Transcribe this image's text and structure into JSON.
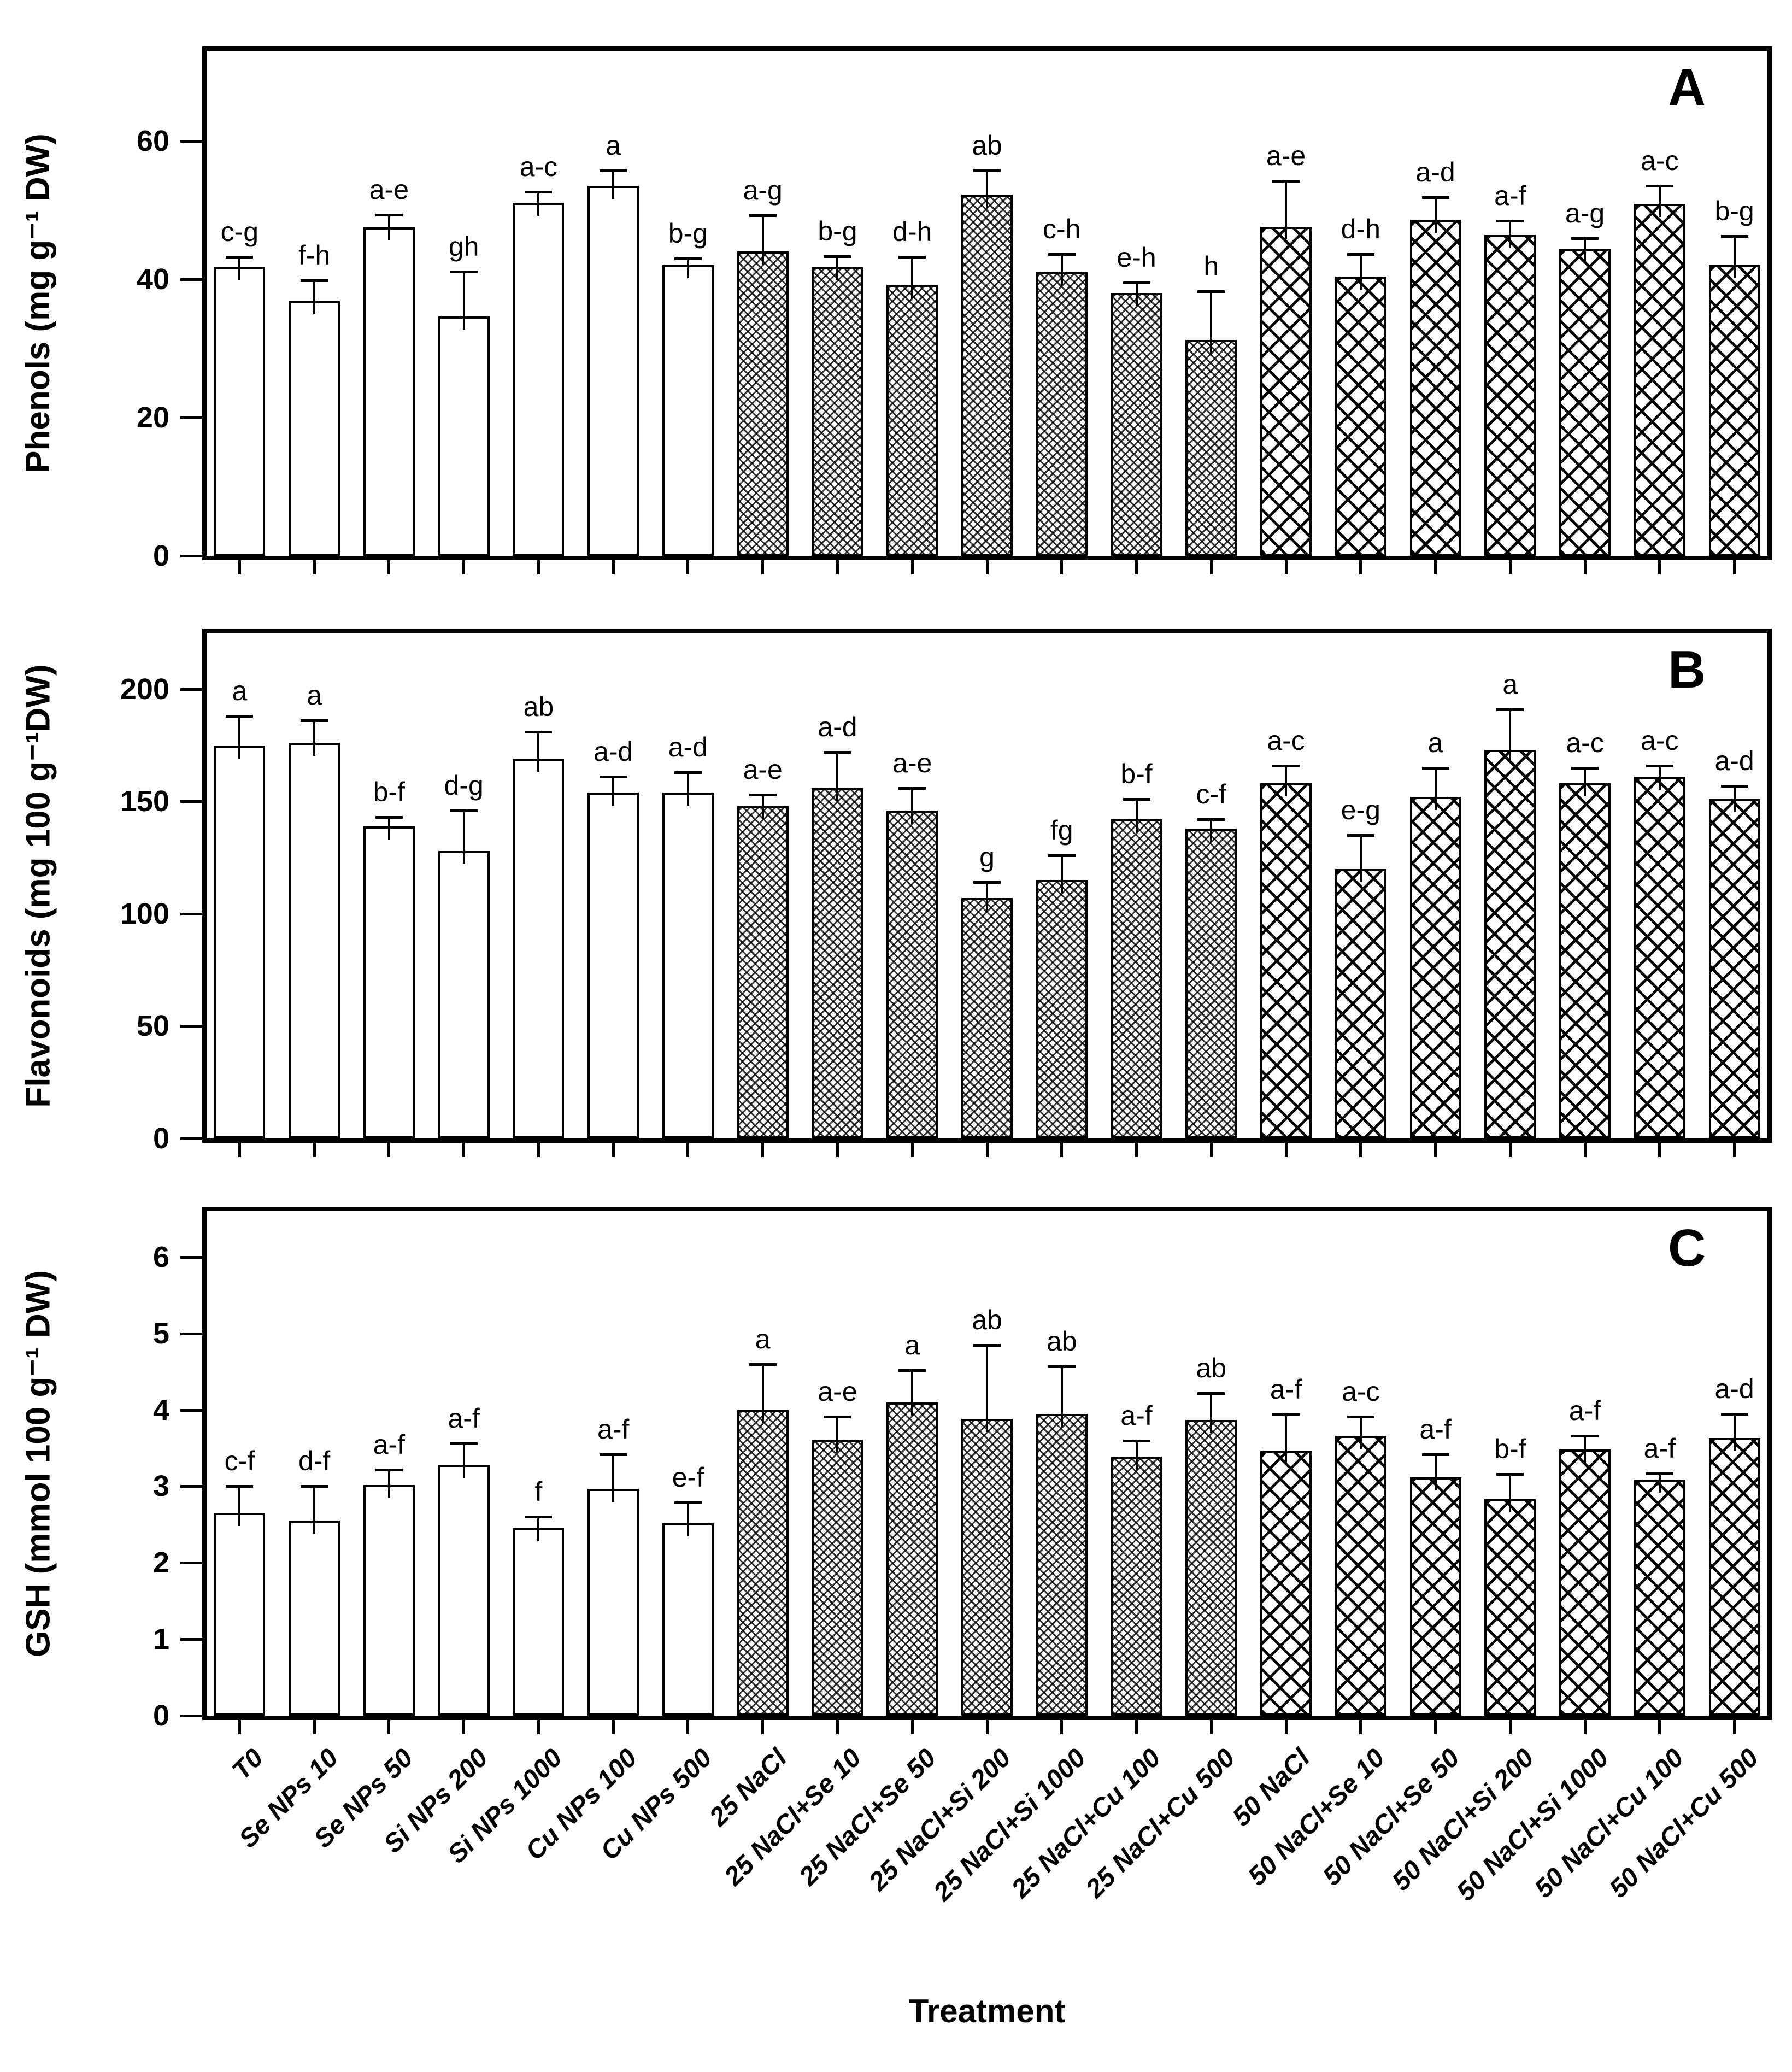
{
  "figure": {
    "x_title": "Treatment",
    "categories": [
      "T0",
      "Se NPs 10",
      "Se NPs 50",
      "Si NPs 200",
      "Si NPs 1000",
      "Cu NPs 100",
      "Cu NPs 500",
      "25 NaCl",
      "25 NaCl+Se 10",
      "25 NaCl+Se 50",
      "25 NaCl+Si 200",
      "25 NaCl+Si 1000",
      "25 NaCl+Cu 100",
      "25 NaCl+Cu 500",
      "50 NaCl",
      "50 NaCl+Se 10",
      "50 NaCl+Se 50",
      "50 NaCl+Si 200",
      "50 NaCl+Si 1000",
      "50 NaCl+Cu 100",
      "50 NaCl+Cu 500"
    ],
    "bar_groups": [
      {
        "name": "control-no-salt",
        "pattern": "plain",
        "indices": [
          0,
          1,
          2,
          3,
          4,
          5,
          6
        ]
      },
      {
        "name": "25mM-NaCl",
        "pattern": "fine-crosshatch",
        "indices": [
          7,
          8,
          9,
          10,
          11,
          12,
          13
        ]
      },
      {
        "name": "50mM-NaCl",
        "pattern": "coarse-crosshatch",
        "indices": [
          14,
          15,
          16,
          17,
          18,
          19,
          20
        ]
      }
    ],
    "colors": {
      "bar_fill": "#ffffff",
      "bar_border": "#000000",
      "text": "#000000",
      "background": "#ffffff"
    }
  },
  "chart_data": [
    {
      "type": "bar",
      "panel_letter": "A",
      "title": "",
      "ylabel": "Phenols (mg g⁻¹ DW)",
      "xlabel": "Treatment",
      "ylim": [
        0,
        73
      ],
      "yticks": [
        0,
        20,
        40,
        60
      ],
      "grid": false,
      "legend": "none",
      "categories": [
        "T0",
        "Se NPs 10",
        "Se NPs 50",
        "Si NPs 200",
        "Si NPs 1000",
        "Cu NPs 100",
        "Cu NPs 500",
        "25 NaCl",
        "25 NaCl+Se 10",
        "25 NaCl+Se 50",
        "25 NaCl+Si 200",
        "25 NaCl+Si 1000",
        "25 NaCl+Cu 100",
        "25 NaCl+Cu 500",
        "50 NaCl",
        "50 NaCl+Se 10",
        "50 NaCl+Se 50",
        "50 NaCl+Si 200",
        "50 NaCl+Si 1000",
        "50 NaCl+Cu 100",
        "50 NaCl+Cu 500"
      ],
      "values": [
        41.8,
        36.8,
        47.5,
        34.6,
        51.0,
        53.5,
        42.0,
        44.0,
        41.7,
        39.2,
        52.2,
        41.0,
        38.0,
        31.2,
        47.6,
        40.4,
        48.6,
        46.4,
        44.3,
        50.9,
        42.0
      ],
      "errors": [
        1.4,
        3.0,
        1.8,
        6.5,
        1.6,
        2.2,
        1.0,
        5.2,
        1.6,
        4.0,
        3.5,
        2.6,
        1.5,
        7.0,
        6.6,
        3.2,
        3.2,
        2.0,
        1.6,
        2.6,
        4.2
      ],
      "sig_letters": [
        "c-g",
        "f-h",
        "a-e",
        "gh",
        "a-c",
        "a",
        "b-g",
        "a-g",
        "b-g",
        "d-h",
        "ab",
        "c-h",
        "e-h",
        "h",
        "a-e",
        "d-h",
        "a-d",
        "a-f",
        "a-g",
        "a-c",
        "b-g"
      ]
    },
    {
      "type": "bar",
      "panel_letter": "B",
      "title": "",
      "ylabel": "Flavonoids (mg 100 g⁻¹DW)",
      "xlabel": "Treatment",
      "ylim": [
        0,
        225
      ],
      "yticks": [
        0,
        50,
        100,
        150,
        200
      ],
      "grid": false,
      "legend": "none",
      "categories": [
        "T0",
        "Se NPs 10",
        "Se NPs 50",
        "Si NPs 200",
        "Si NPs 1000",
        "Cu NPs 100",
        "Cu NPs 500",
        "25 NaCl",
        "25 NaCl+Se 10",
        "25 NaCl+Se 50",
        "25 NaCl+Si 200",
        "25 NaCl+Si 1000",
        "25 NaCl+Cu 100",
        "25 NaCl+Cu 500",
        "50 NaCl",
        "50 NaCl+Se 10",
        "50 NaCl+Se 50",
        "50 NaCl+Si 200",
        "50 NaCl+Si 1000",
        "50 NaCl+Cu 100",
        "50 NaCl+Cu 500"
      ],
      "values": [
        175,
        176,
        139,
        128,
        169,
        154,
        154,
        148,
        156,
        146,
        107,
        115,
        142,
        138,
        158,
        120,
        152,
        173,
        158,
        161,
        151
      ],
      "errors": [
        13,
        10,
        4,
        18,
        12,
        7,
        9,
        5,
        16,
        10,
        7,
        11,
        9,
        4,
        8,
        15,
        13,
        18,
        7,
        5,
        6
      ],
      "sig_letters": [
        "a",
        "a",
        "b-f",
        "d-g",
        "ab",
        "a-d",
        "a-d",
        "a-e",
        "a-d",
        "a-e",
        "g",
        "fg",
        "b-f",
        "c-f",
        "a-c",
        "e-g",
        "a",
        "a",
        "a-c",
        "a-c",
        "a-d"
      ]
    },
    {
      "type": "bar",
      "panel_letter": "C",
      "title": "",
      "ylabel": "GSH (mmol 100 g⁻¹ DW)",
      "xlabel": "Treatment",
      "ylim": [
        0,
        6.6
      ],
      "yticks": [
        0,
        1,
        2,
        3,
        4,
        5,
        6
      ],
      "grid": false,
      "legend": "none",
      "categories": [
        "T0",
        "Se NPs 10",
        "Se NPs 50",
        "Si NPs 200",
        "Si NPs 1000",
        "Cu NPs 100",
        "Cu NPs 500",
        "25 NaCl",
        "25 NaCl+Se 10",
        "25 NaCl+Se 50",
        "25 NaCl+Si 200",
        "25 NaCl+Si 1000",
        "25 NaCl+Cu 100",
        "25 NaCl+Cu 500",
        "50 NaCl",
        "50 NaCl+Se 10",
        "50 NaCl+Se 50",
        "50 NaCl+Si 200",
        "50 NaCl+Si 1000",
        "50 NaCl+Cu 100",
        "50 NaCl+Cu 500"
      ],
      "values": [
        2.65,
        2.55,
        3.02,
        3.28,
        2.45,
        2.97,
        2.52,
        4.0,
        3.61,
        4.1,
        3.88,
        3.95,
        3.38,
        3.87,
        3.46,
        3.66,
        3.12,
        2.83,
        3.48,
        3.09,
        3.63
      ],
      "errors": [
        0.35,
        0.45,
        0.2,
        0.28,
        0.15,
        0.45,
        0.27,
        0.6,
        0.3,
        0.42,
        0.97,
        0.62,
        0.22,
        0.35,
        0.48,
        0.25,
        0.3,
        0.33,
        0.18,
        0.08,
        0.32
      ],
      "sig_letters": [
        "c-f",
        "d-f",
        "a-f",
        "a-f",
        "f",
        "a-f",
        "e-f",
        "a",
        "a-e",
        "a",
        "ab",
        "ab",
        "a-f",
        "ab",
        "a-f",
        "a-c",
        "a-f",
        "b-f",
        "a-f",
        "a-f",
        "a-d"
      ]
    }
  ]
}
